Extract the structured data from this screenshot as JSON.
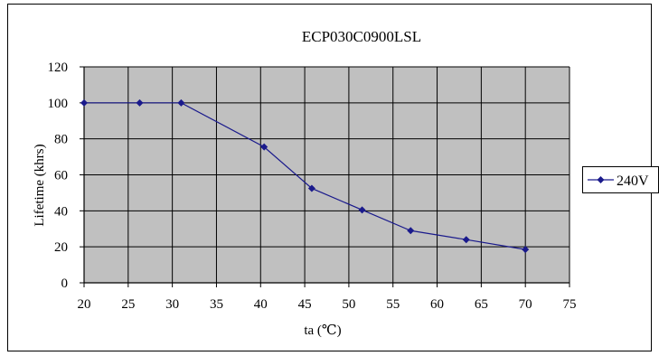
{
  "chart_data": {
    "type": "line",
    "title": "ECP030C0900LSL",
    "xlabel": "ta (℃)",
    "ylabel": "Lifetime (khrs)",
    "xlim": [
      20,
      75
    ],
    "ylim": [
      0,
      120
    ],
    "x_ticks": [
      20,
      25,
      30,
      35,
      40,
      45,
      50,
      55,
      60,
      65,
      70,
      75
    ],
    "y_ticks": [
      0,
      20,
      40,
      60,
      80,
      100,
      120
    ],
    "grid": true,
    "plot_background": "#c0c0c0",
    "legend_position": "right",
    "series": [
      {
        "name": "240V",
        "color": "#1a1a8c",
        "marker": "diamond",
        "x": [
          20,
          26.3,
          31,
          40.4,
          45.8,
          51.5,
          57,
          63.3,
          70
        ],
        "y": [
          100,
          100,
          100,
          75.5,
          52.5,
          40.5,
          29,
          24,
          18.5
        ]
      }
    ]
  }
}
